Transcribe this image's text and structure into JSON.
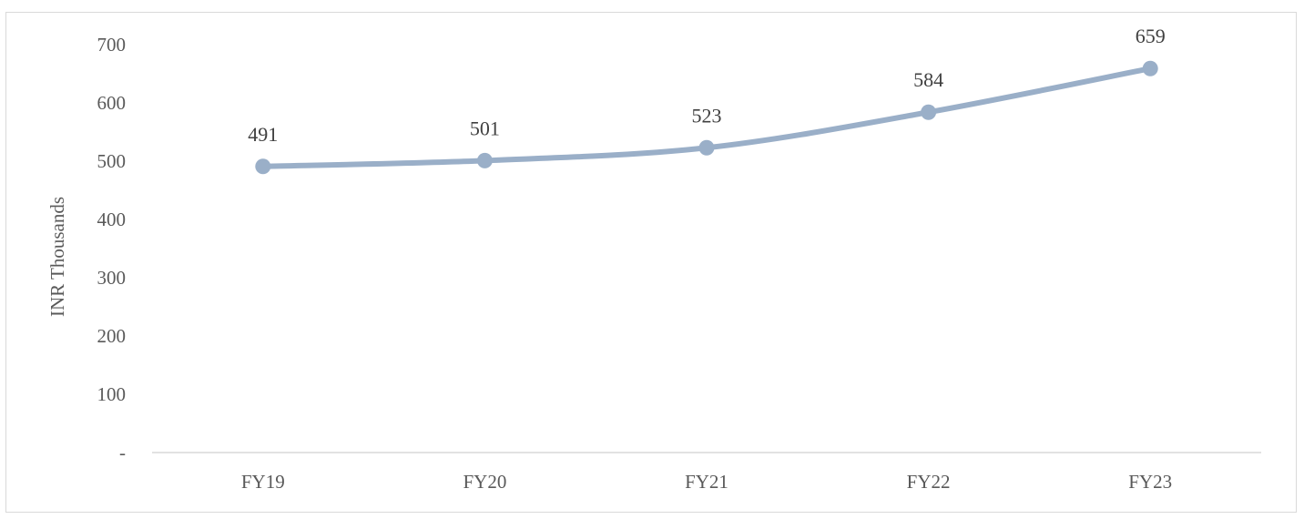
{
  "chart_data": {
    "type": "line",
    "categories": [
      "FY19",
      "FY20",
      "FY21",
      "FY22",
      "FY23"
    ],
    "series": [
      {
        "values": [
          491,
          501,
          523,
          584,
          659
        ],
        "data_labels": [
          "491",
          "501",
          "523",
          "584",
          "659"
        ],
        "color": "#9aafc8"
      }
    ],
    "title": "",
    "xlabel": "",
    "ylabel": "INR Thousands",
    "ylim": [
      0,
      700
    ],
    "yticks": [
      0,
      100,
      200,
      300,
      400,
      500,
      600,
      700
    ],
    "ytick_labels": [
      "-",
      "100",
      "200",
      "300",
      "400",
      "500",
      "600",
      "700"
    ],
    "grid": false,
    "legend": "none",
    "axis_color": "#d9d9d9",
    "text_color": "#595959"
  }
}
